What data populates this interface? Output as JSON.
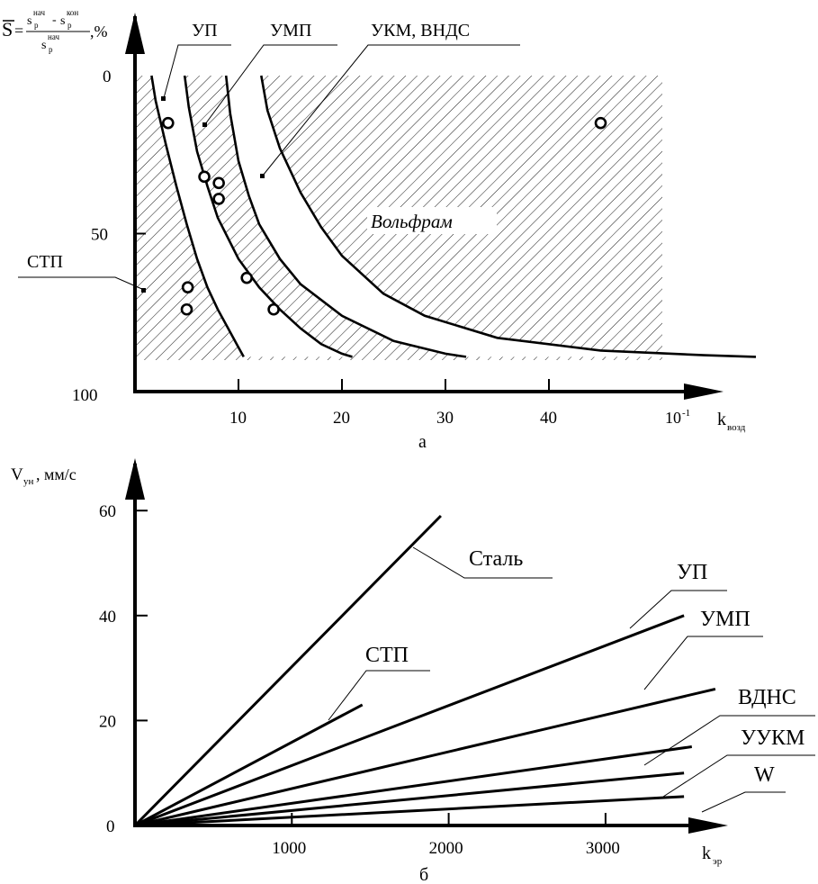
{
  "chart_data": [
    {
      "type": "line",
      "panel_label": "а",
      "ylabel_parts": {
        "S": "S",
        "eq": "=",
        "sp": "s",
        "p": "p",
        "nach": "нач",
        "kon": "кон",
        "minus": "-",
        "pct": ",%"
      },
      "xlabel_parts": {
        "k": "k",
        "sub": "возд"
      },
      "x_scale_note": "10",
      "x_scale_exp": "-1",
      "xlim": [
        0,
        56
      ],
      "ylim": [
        0,
        100
      ],
      "y_inverted": true,
      "xticks": [
        "10",
        "20",
        "30",
        "40"
      ],
      "yticks": [
        "0",
        "50",
        "100"
      ],
      "region_labels": [
        "УП",
        "УМП",
        "УКМ, ВНДС",
        "СТП"
      ],
      "region_text": "Вольфрам",
      "curves": [
        {
          "name": "b1",
          "x": [
            1.6,
            2.0,
            3.0,
            4.0,
            5.0,
            6.0,
            7.0,
            8.0,
            9.0,
            10.0,
            10.5
          ],
          "y": [
            0,
            8,
            22,
            35,
            47,
            58,
            67,
            74,
            80,
            86,
            89
          ]
        },
        {
          "name": "b2",
          "x": [
            4.8,
            5.2,
            6.0,
            7.0,
            8.0,
            10.0,
            12.0,
            14.0,
            16.0,
            18.0,
            20.0,
            21.0
          ],
          "y": [
            0,
            10,
            24,
            35,
            45,
            58,
            67,
            74,
            80,
            85,
            88,
            89
          ]
        },
        {
          "name": "b3",
          "x": [
            8.8,
            9.2,
            10.0,
            11.0,
            12.0,
            14.0,
            16.0,
            20.0,
            25.0,
            30.0,
            32.0
          ],
          "y": [
            0,
            12,
            27,
            38,
            47,
            58,
            66,
            76,
            84,
            88,
            89
          ]
        },
        {
          "name": "b4",
          "x": [
            12.2,
            12.8,
            14.0,
            16.0,
            18.0,
            20.0,
            24.0,
            28.0,
            35.0,
            45.0,
            55.0,
            60.0
          ],
          "y": [
            0,
            11,
            23,
            37,
            48,
            57,
            69,
            76,
            83,
            87,
            88.5,
            89
          ]
        }
      ],
      "points": [
        {
          "x": 3.2,
          "y": 15
        },
        {
          "x": 6.7,
          "y": 32
        },
        {
          "x": 8.1,
          "y": 34
        },
        {
          "x": 8.1,
          "y": 39
        },
        {
          "x": 10.8,
          "y": 64
        },
        {
          "x": 5.1,
          "y": 67
        },
        {
          "x": 5.0,
          "y": 74
        },
        {
          "x": 13.4,
          "y": 74
        },
        {
          "x": 45.0,
          "y": 15
        }
      ]
    },
    {
      "type": "line",
      "panel_label": "б",
      "ylabel_parts": {
        "V": "V",
        "sub": "ун",
        "unit": ", мм/с"
      },
      "xlabel_parts": {
        "k": "k",
        "sub": "эр"
      },
      "xlim": [
        0,
        4000
      ],
      "ylim": [
        0,
        70
      ],
      "xticks": [
        "1000",
        "2000",
        "3000"
      ],
      "yticks": [
        "0",
        "20",
        "40",
        "60"
      ],
      "series": [
        {
          "name": "Сталь",
          "x": [
            0,
            1950
          ],
          "y": [
            0,
            59
          ]
        },
        {
          "name": "СТП",
          "x": [
            0,
            1450
          ],
          "y": [
            0,
            23
          ]
        },
        {
          "name": "УП",
          "x": [
            0,
            3500
          ],
          "y": [
            0,
            40
          ]
        },
        {
          "name": "УМП",
          "x": [
            0,
            3700
          ],
          "y": [
            0,
            26
          ]
        },
        {
          "name": "ВДНС",
          "x": [
            0,
            3550
          ],
          "y": [
            0,
            15
          ]
        },
        {
          "name": "УУКМ",
          "x": [
            0,
            3500
          ],
          "y": [
            0,
            10
          ]
        },
        {
          "name": "W",
          "x": [
            0,
            3500
          ],
          "y": [
            0,
            5.5
          ]
        }
      ]
    }
  ]
}
